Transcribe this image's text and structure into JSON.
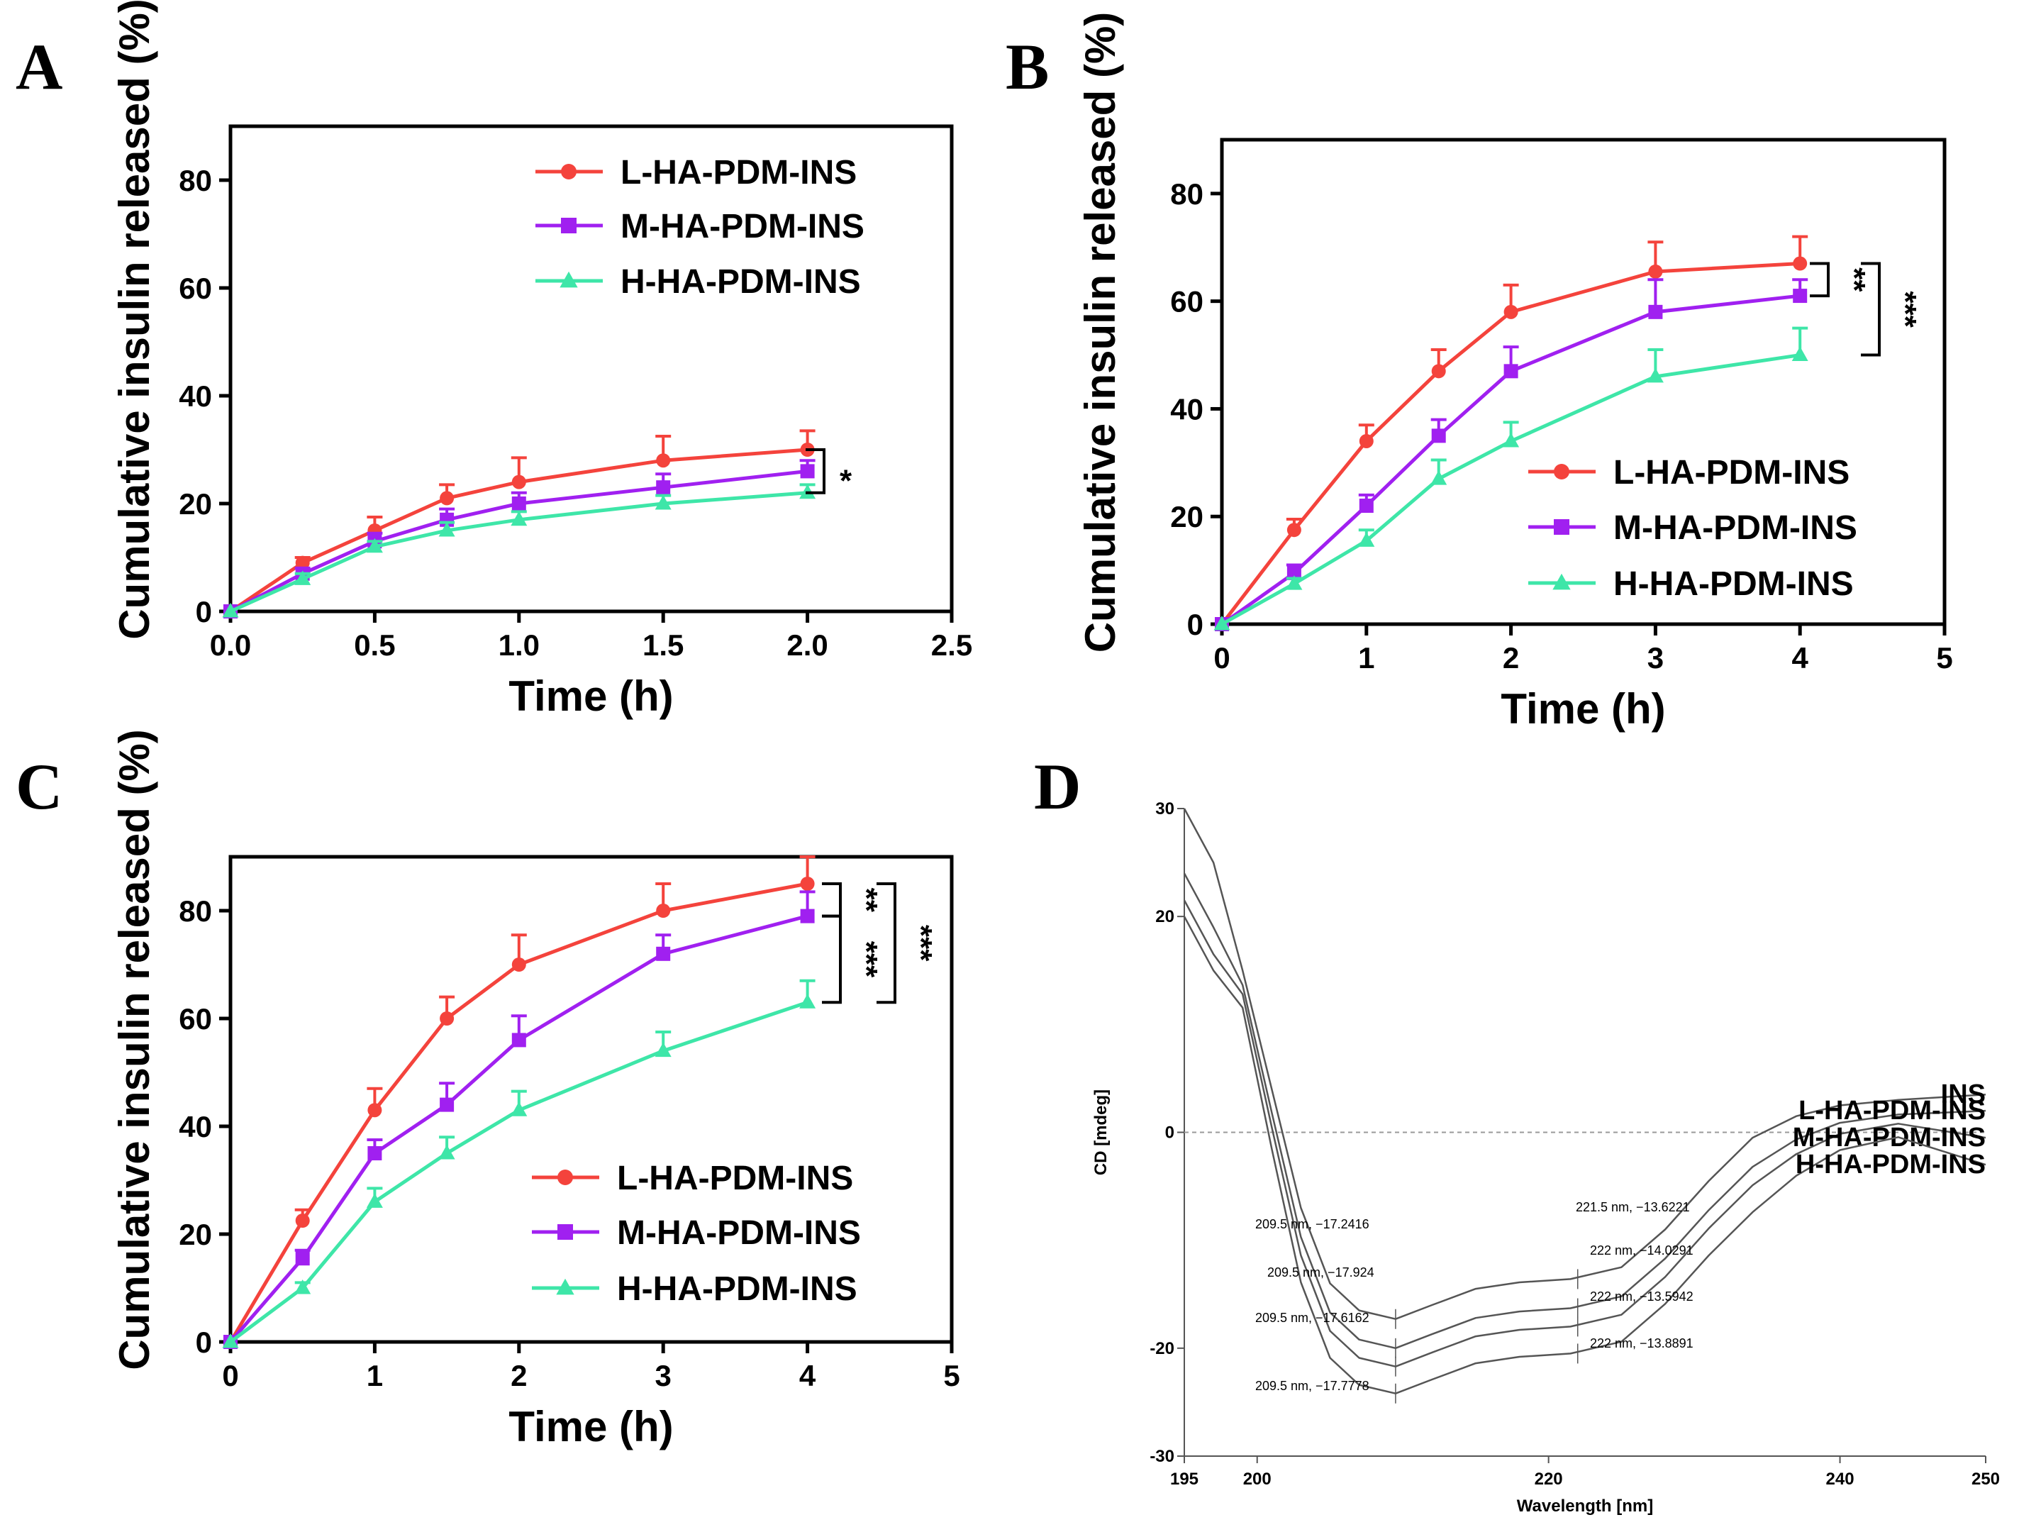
{
  "colors": {
    "L": "#f4433c",
    "M": "#a020f0",
    "H": "#3ee6a8",
    "axis": "#000000",
    "cd": "#555555"
  },
  "chart_data": [
    {
      "panel": "A",
      "type": "line",
      "xlabel": "Time (h)",
      "ylabel": "Cumulative insulin released (%)",
      "xlim": [
        0,
        2.5
      ],
      "ylim": [
        0,
        90
      ],
      "xticks": [
        0,
        0.5,
        1.0,
        1.5,
        2.0,
        2.5
      ],
      "xtick_labels": [
        "0.0",
        "0.5",
        "1.0",
        "1.5",
        "2.0",
        "2.5"
      ],
      "yticks": [
        0,
        20,
        40,
        60,
        80
      ],
      "ytick_labels": [
        "0",
        "20",
        "40",
        "60",
        "80"
      ],
      "legend_position": "top-right",
      "x": [
        0,
        0.25,
        0.5,
        0.75,
        1.0,
        1.5,
        2.0
      ],
      "series": [
        {
          "name": "L-HA-PDM-INS",
          "key": "L",
          "marker": "circle",
          "values": [
            0,
            9,
            15,
            21,
            24,
            28,
            30
          ],
          "errors": [
            0,
            1,
            2.5,
            2.5,
            4.5,
            4.5,
            3.5
          ]
        },
        {
          "name": "M-HA-PDM-INS",
          "key": "M",
          "marker": "square",
          "values": [
            0,
            7,
            13,
            17,
            20,
            23,
            26
          ],
          "errors": [
            0,
            1,
            1.5,
            2,
            2,
            2.5,
            2
          ]
        },
        {
          "name": "H-HA-PDM-INS",
          "key": "H",
          "marker": "triangle",
          "values": [
            0,
            6,
            12,
            15,
            17,
            20,
            22
          ],
          "errors": [
            0,
            1,
            1,
            1.5,
            1.5,
            1.5,
            1.5
          ]
        }
      ],
      "significance": [
        {
          "label": "*",
          "from": "L",
          "to": "H"
        }
      ]
    },
    {
      "panel": "B",
      "type": "line",
      "xlabel": "Time (h)",
      "ylabel": "Cumulative insulin released (%)",
      "xlim": [
        0,
        5
      ],
      "ylim": [
        0,
        90
      ],
      "xticks": [
        0,
        1,
        2,
        3,
        4,
        5
      ],
      "xtick_labels": [
        "0",
        "1",
        "2",
        "3",
        "4",
        "5"
      ],
      "yticks": [
        0,
        20,
        40,
        60,
        80
      ],
      "ytick_labels": [
        "0",
        "20",
        "40",
        "60",
        "80"
      ],
      "legend_position": "bottom-right",
      "x": [
        0,
        0.5,
        1,
        1.5,
        2,
        3,
        4
      ],
      "series": [
        {
          "name": "L-HA-PDM-INS",
          "key": "L",
          "marker": "circle",
          "values": [
            0,
            17.5,
            34,
            47,
            58,
            65.5,
            67
          ],
          "errors": [
            0,
            2,
            3,
            4,
            5,
            5.5,
            5
          ]
        },
        {
          "name": "M-HA-PDM-INS",
          "key": "M",
          "marker": "square",
          "values": [
            0,
            9.5,
            22,
            35,
            47,
            58,
            61
          ],
          "errors": [
            0,
            1.5,
            2,
            3,
            4.5,
            6,
            3
          ]
        },
        {
          "name": "H-HA-PDM-INS",
          "key": "H",
          "marker": "triangle",
          "values": [
            0,
            7.5,
            15.5,
            27,
            34,
            46,
            50
          ],
          "errors": [
            0,
            1,
            2,
            3.5,
            3.5,
            5,
            5
          ]
        }
      ],
      "significance": [
        {
          "label": "**",
          "from": "L",
          "to": "M"
        },
        {
          "label": "***",
          "from": "L",
          "to": "H"
        }
      ]
    },
    {
      "panel": "C",
      "type": "line",
      "xlabel": "Time (h)",
      "ylabel": "Cumulative insulin released (%)",
      "xlim": [
        0,
        5
      ],
      "ylim": [
        0,
        90
      ],
      "xticks": [
        0,
        1,
        2,
        3,
        4,
        5
      ],
      "xtick_labels": [
        "0",
        "1",
        "2",
        "3",
        "4",
        "5"
      ],
      "yticks": [
        0,
        20,
        40,
        60,
        80
      ],
      "ytick_labels": [
        "0",
        "20",
        "40",
        "60",
        "80"
      ],
      "legend_position": "bottom-right",
      "x": [
        0,
        0.5,
        1,
        1.5,
        2,
        3,
        4
      ],
      "series": [
        {
          "name": "L-HA-PDM-INS",
          "key": "L",
          "marker": "circle",
          "values": [
            0,
            22.5,
            43,
            60,
            70,
            80,
            85
          ],
          "errors": [
            0,
            2,
            4,
            4,
            5.5,
            5,
            5
          ]
        },
        {
          "name": "M-HA-PDM-INS",
          "key": "M",
          "marker": "square",
          "values": [
            0,
            15.5,
            35,
            44,
            56,
            72,
            79
          ],
          "errors": [
            0,
            1.5,
            2.5,
            4,
            4.5,
            3.5,
            4.5
          ]
        },
        {
          "name": "H-HA-PDM-INS",
          "key": "H",
          "marker": "triangle",
          "values": [
            0,
            10,
            26,
            35,
            43,
            54,
            63
          ],
          "errors": [
            0,
            1,
            2.5,
            3,
            3.5,
            3.5,
            4
          ]
        }
      ],
      "significance": [
        {
          "label": "**",
          "from": "L",
          "to": "M"
        },
        {
          "label": "***",
          "from": "M",
          "to": "H"
        },
        {
          "label": "***",
          "from": "L",
          "to": "H"
        }
      ]
    },
    {
      "panel": "D",
      "type": "line",
      "xlabel": "Wavelength [nm]",
      "ylabel": "CD [mdeg]",
      "xlim": [
        195,
        250
      ],
      "ylim": [
        -30,
        30
      ],
      "xticks": [
        195,
        200,
        220,
        240,
        250
      ],
      "xtick_labels": [
        "195",
        "200",
        "220",
        "240",
        "250"
      ],
      "yticks": [
        -30,
        -20,
        0,
        20,
        30
      ],
      "ytick_labels": [
        "-30",
        "-20",
        "0",
        "20",
        "30"
      ],
      "series": [
        {
          "name": "INS",
          "offset": 0,
          "start": 30,
          "end": 3.5
        },
        {
          "name": "L-HA-PDM-INS",
          "offset": -2.7,
          "start": 24,
          "end": 2
        },
        {
          "name": "M-HA-PDM-INS",
          "offset": -4.4,
          "start": 21.5,
          "end": -0.5
        },
        {
          "name": "H-HA-PDM-INS",
          "offset": -6.9,
          "start": 20,
          "end": -3
        }
      ],
      "annotations": [
        "209.5 nm, −17.2416",
        "209.5 nm, −17.924",
        "209.5 nm, −17.6162",
        "209.5 nm, −17.7778",
        "221.5 nm, −13.6221",
        "222 nm, −14.0291",
        "222 nm, −13.5942",
        "222 nm, −13.8891"
      ]
    }
  ]
}
